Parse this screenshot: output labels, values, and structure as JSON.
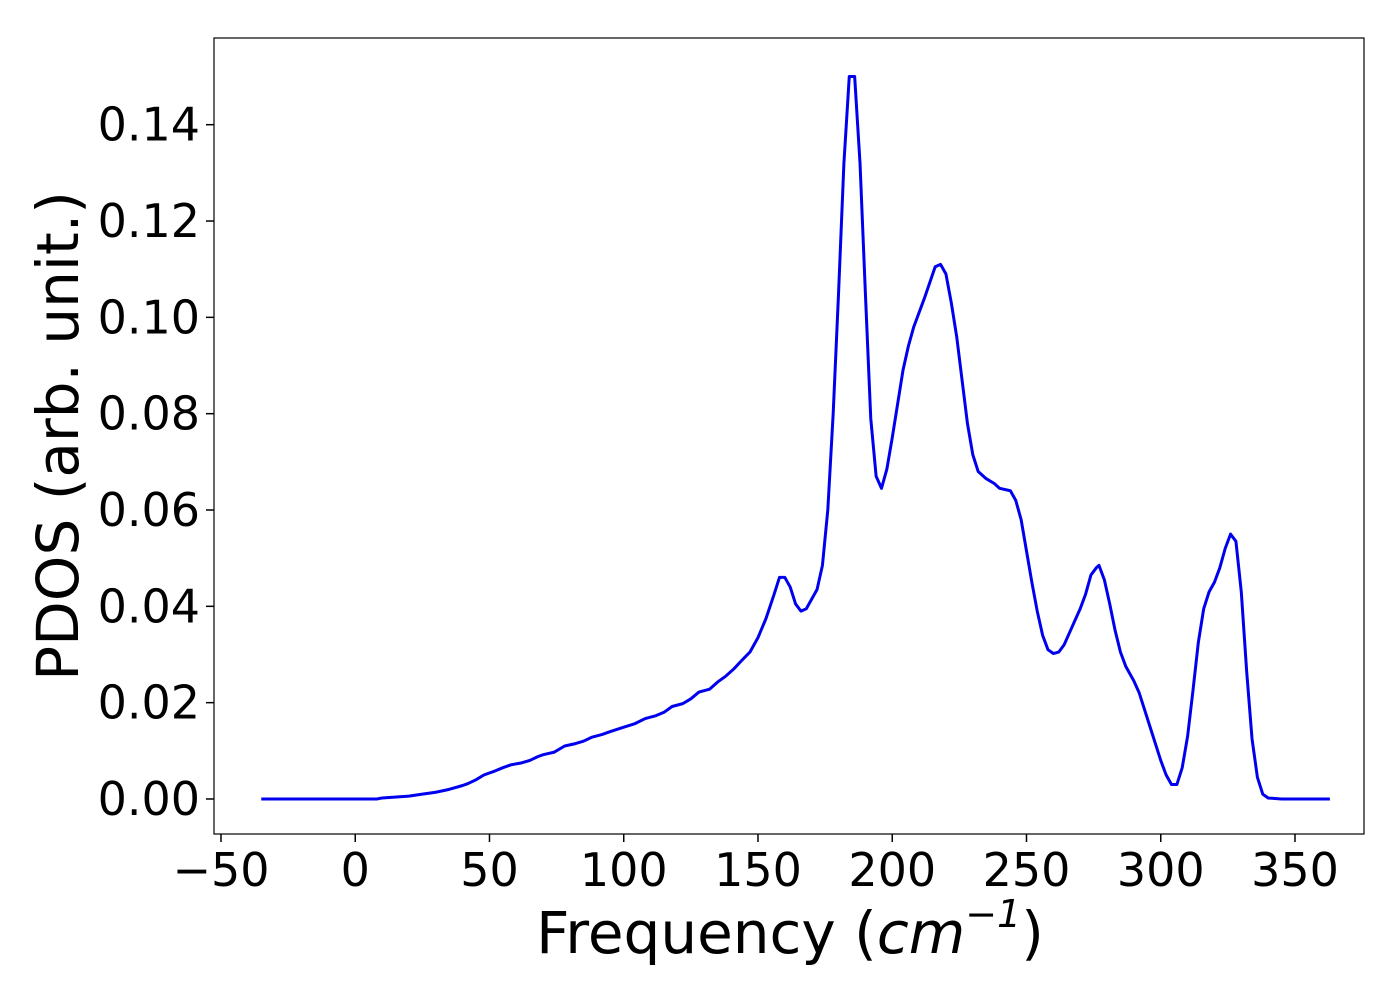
{
  "chart_data": {
    "type": "line",
    "x_label": {
      "text": "Frequency (",
      "unit": "cm",
      "exponent": "−1",
      "close": ")"
    },
    "y_label": "PDOS (arb. unit.)",
    "x": [
      -35,
      -20,
      0,
      8,
      10,
      20,
      25,
      30,
      35,
      40,
      42,
      45,
      48,
      52,
      55,
      58,
      62,
      65,
      68,
      70,
      74,
      78,
      82,
      85,
      88,
      92,
      95,
      100,
      104,
      108,
      112,
      115,
      118,
      122,
      125,
      128,
      132,
      135,
      138,
      141,
      144,
      147,
      150,
      153,
      156,
      158,
      160,
      162,
      164,
      166,
      168,
      170,
      172,
      174,
      176,
      178,
      180,
      182,
      184,
      186,
      188,
      190,
      192,
      194,
      196,
      198,
      200,
      202,
      204,
      206,
      208,
      212,
      216,
      218,
      220,
      222,
      224,
      226,
      228,
      230,
      232,
      235,
      238,
      240,
      244,
      246,
      248,
      250,
      252,
      254,
      256,
      258,
      260,
      262,
      264,
      266,
      268,
      270,
      272,
      274,
      276,
      277,
      279,
      281,
      283,
      285,
      287,
      290,
      292,
      294,
      296,
      298,
      300,
      302,
      304,
      306,
      308,
      310,
      312,
      314,
      316,
      318,
      320,
      322,
      324,
      326,
      328,
      330,
      332,
      334,
      336,
      338,
      340,
      345,
      363
    ],
    "series": [
      {
        "name": "PDOS",
        "color": "#0000ee",
        "values": [
          0,
          0,
          0,
          0,
          0.0002,
          0.0006,
          0.001,
          0.0014,
          0.002,
          0.0028,
          0.0032,
          0.004,
          0.005,
          0.0058,
          0.0065,
          0.0071,
          0.0075,
          0.008,
          0.0088,
          0.0092,
          0.0097,
          0.011,
          0.0115,
          0.012,
          0.0128,
          0.0134,
          0.014,
          0.0149,
          0.0156,
          0.0167,
          0.0173,
          0.018,
          0.0192,
          0.0198,
          0.0208,
          0.0222,
          0.0228,
          0.0243,
          0.0255,
          0.027,
          0.0288,
          0.0305,
          0.0335,
          0.0375,
          0.0425,
          0.046,
          0.046,
          0.044,
          0.0405,
          0.039,
          0.0395,
          0.0415,
          0.0435,
          0.0485,
          0.06,
          0.08,
          0.105,
          0.132,
          0.15,
          0.15,
          0.132,
          0.105,
          0.079,
          0.067,
          0.0645,
          0.0685,
          0.075,
          0.082,
          0.089,
          0.094,
          0.098,
          0.104,
          0.1105,
          0.111,
          0.109,
          0.103,
          0.096,
          0.087,
          0.078,
          0.0715,
          0.068,
          0.0665,
          0.0655,
          0.0645,
          0.064,
          0.062,
          0.058,
          0.0515,
          0.045,
          0.039,
          0.034,
          0.031,
          0.0302,
          0.0305,
          0.032,
          0.0345,
          0.037,
          0.0395,
          0.0425,
          0.0465,
          0.048,
          0.0485,
          0.0455,
          0.0405,
          0.035,
          0.0305,
          0.0275,
          0.0245,
          0.022,
          0.0185,
          0.015,
          0.0115,
          0.008,
          0.005,
          0.003,
          0.003,
          0.0065,
          0.013,
          0.0225,
          0.0325,
          0.0395,
          0.043,
          0.045,
          0.048,
          0.052,
          0.055,
          0.0535,
          0.043,
          0.0265,
          0.0125,
          0.0045,
          0.001,
          0.0002,
          0,
          0
        ]
      }
    ],
    "xlim": [
      -52.6,
      375.7
    ],
    "xticks": [
      {
        "value": -50,
        "label": "−50"
      },
      0,
      50,
      100,
      150,
      200,
      250,
      300,
      350
    ],
    "ylim": [
      -0.00727,
      0.158
    ],
    "yticks": [
      {
        "value": 0,
        "label": "0.00"
      },
      0.02,
      0.04,
      0.06,
      0.08,
      {
        "value": 0.1,
        "label": "0.10"
      },
      0.12,
      0.14
    ],
    "grid": false
  }
}
